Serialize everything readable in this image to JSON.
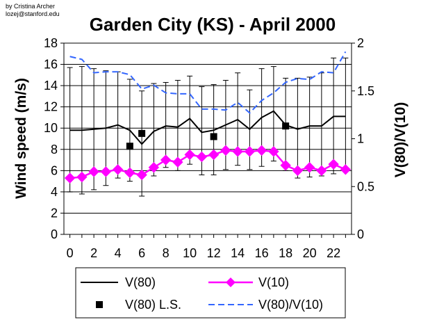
{
  "credit": {
    "line1": "by Cristina Archer",
    "line2": "lozej@stanford.edu"
  },
  "chart_data": {
    "type": "line",
    "title": "Garden City (KS) - April 2000",
    "xlabel": "",
    "ylabel": "Wind speed (m/s)",
    "y2label": "V(80)/V(10)",
    "x": [
      0,
      1,
      2,
      3,
      4,
      5,
      6,
      7,
      8,
      9,
      10,
      11,
      12,
      13,
      14,
      15,
      16,
      17,
      18,
      19,
      20,
      21,
      22,
      23
    ],
    "xticks": [
      "0",
      "2",
      "4",
      "6",
      "8",
      "10",
      "12",
      "14",
      "16",
      "18",
      "20",
      "22"
    ],
    "ylim": [
      0,
      18
    ],
    "yticks": [
      "0",
      "2",
      "4",
      "6",
      "8",
      "10",
      "12",
      "14",
      "16",
      "18"
    ],
    "y2lim": [
      0,
      2
    ],
    "y2ticks": [
      "0",
      "0.5",
      "1",
      "1.5",
      "2"
    ],
    "grid": true,
    "legend_position": "bottom",
    "colors": {
      "v80": "#000000",
      "v10": "#ff00ff",
      "ratio": "#3366ff",
      "ls": "#000000"
    },
    "series": [
      {
        "name": "V(80)",
        "axis": "left",
        "style": "solid-line",
        "values": [
          9.8,
          9.8,
          9.9,
          10.0,
          10.3,
          9.8,
          8.5,
          9.7,
          10.2,
          10.1,
          10.9,
          9.6,
          9.8,
          10.3,
          10.8,
          9.9,
          11.0,
          11.6,
          10.3,
          9.9,
          10.2,
          10.2,
          11.1,
          11.1
        ],
        "error_low": [
          4.0,
          3.8,
          4.2,
          4.6,
          5.3,
          5.0,
          3.6,
          5.5,
          6.3,
          6.0,
          6.6,
          5.6,
          5.6,
          6.1,
          6.5,
          6.1,
          6.4,
          6.9,
          6.0,
          5.3,
          5.4,
          5.5,
          5.7,
          5.9
        ],
        "error_high": [
          15.7,
          15.8,
          15.6,
          15.4,
          15.3,
          14.6,
          13.5,
          14.2,
          14.3,
          14.5,
          14.9,
          13.9,
          14.1,
          14.5,
          15.2,
          13.6,
          15.6,
          15.8,
          14.7,
          14.7,
          14.8,
          15.2,
          16.6,
          16.6
        ]
      },
      {
        "name": "V(10)",
        "axis": "left",
        "style": "diamond-line",
        "values": [
          5.3,
          5.4,
          5.9,
          5.9,
          6.1,
          5.8,
          5.6,
          6.3,
          7.0,
          6.8,
          7.5,
          7.3,
          7.5,
          7.9,
          7.8,
          7.8,
          7.9,
          7.8,
          6.5,
          6.0,
          6.3,
          6.0,
          6.6,
          6.1
        ]
      },
      {
        "name": "V(80) L.S.",
        "axis": "left",
        "style": "square-marker",
        "x": [
          5,
          6,
          12,
          18
        ],
        "values": [
          8.3,
          9.5,
          9.2,
          10.2
        ]
      },
      {
        "name": "V(80)/V(10)",
        "axis": "right",
        "style": "dashed-line",
        "values": [
          1.86,
          1.83,
          1.69,
          1.7,
          1.7,
          1.67,
          1.52,
          1.56,
          1.48,
          1.47,
          1.47,
          1.31,
          1.31,
          1.3,
          1.38,
          1.27,
          1.4,
          1.48,
          1.59,
          1.63,
          1.62,
          1.7,
          1.69,
          1.91
        ]
      }
    ],
    "legend": [
      {
        "label": "V(80)",
        "style": "solid-line"
      },
      {
        "label": "V(10)",
        "style": "diamond-line"
      },
      {
        "label": "V(80) L.S.",
        "style": "square-marker"
      },
      {
        "label": "V(80)/V(10)",
        "style": "dashed-line"
      }
    ]
  }
}
